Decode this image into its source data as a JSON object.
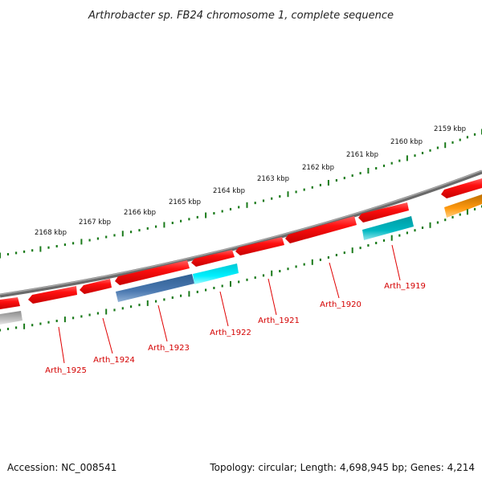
{
  "title": "Arthrobacter sp. FB24 chromosome 1, complete sequence",
  "scale_labels": [
    "2168 kbp",
    "2167 kbp",
    "2166 kbp",
    "2165 kbp",
    "2164 kbp",
    "2163 kbp",
    "2162 kbp",
    "2161 kbp",
    "2160 kbp",
    "2159 kbp"
  ],
  "genes": [
    {
      "name": "Arth_1925",
      "color": "#e60000"
    },
    {
      "name": "Arth_1924",
      "color": "#e60000"
    },
    {
      "name": "Arth_1923",
      "color": "#e60000"
    },
    {
      "name": "Arth_1922",
      "color": "#00e5f0"
    },
    {
      "name": "Arth_1921",
      "color": "#e60000"
    },
    {
      "name": "Arth_1920",
      "color": "#e60000"
    },
    {
      "name": "Arth_1919",
      "color": "#e60000"
    }
  ],
  "colors": {
    "backbone": "#7f7f7f",
    "tick": "#1a7a1a",
    "label": "#d40000",
    "forward_gene": "#e60000",
    "reverse_gene_blue": "#4a78b0",
    "reverse_gene_cyan": "#00e5f0",
    "reverse_gene_teal": "#00b3bd",
    "orange_gene": "#f5960a",
    "grey_gene": "#b5b5b5"
  },
  "footer": {
    "accession": "Accession: NC_008541",
    "summary": "Topology: circular; Length: 4,698,945 bp; Genes: 4,214"
  }
}
